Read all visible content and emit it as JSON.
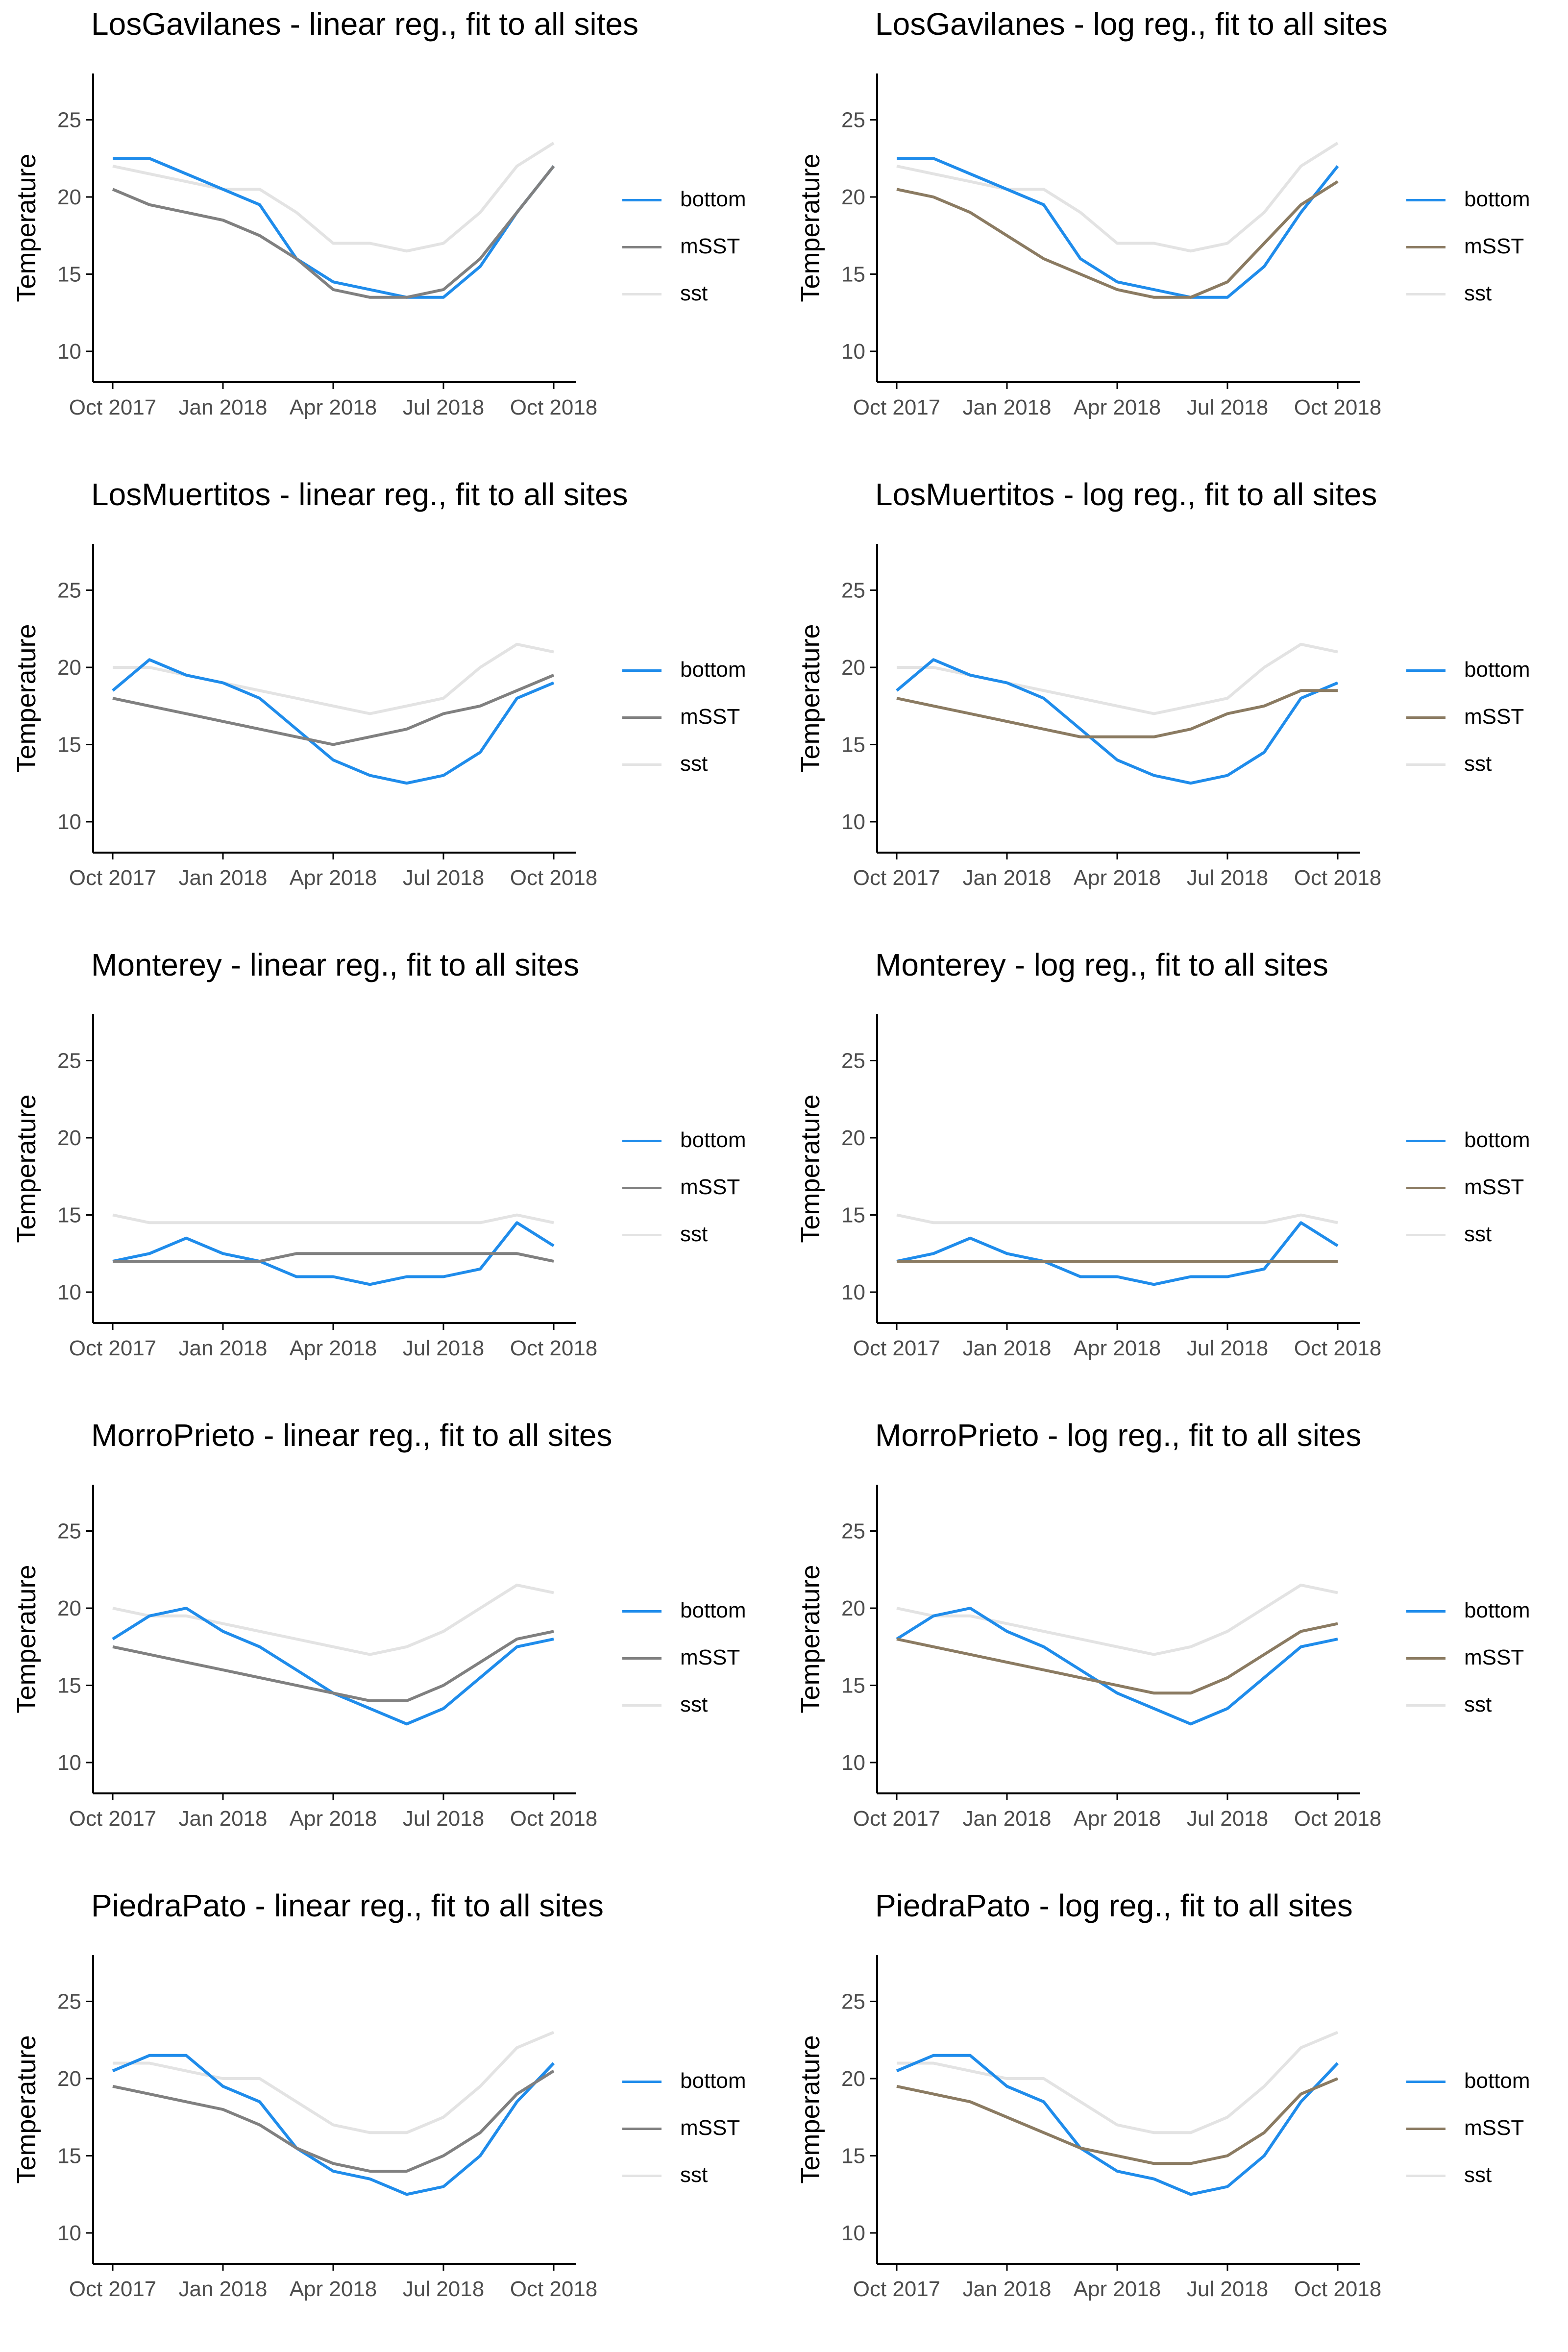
{
  "colors": {
    "bottom": "#1f8ceb",
    "mSST_linear": "#808080",
    "mSST_log": "#8b7b62",
    "sst": "#e3e3e3",
    "axis": "#000000",
    "tick_text": "#4d4d4d"
  },
  "legend": [
    "bottom",
    "mSST",
    "sst"
  ],
  "chart_data": [
    {
      "type": "line",
      "title": "LosGavilanes - linear reg., fit to all sites",
      "xlabel": "",
      "ylabel": "Temperature",
      "xticks": [
        "Oct 2017",
        "Jan 2018",
        "Apr 2018",
        "Jul 2018",
        "Oct 2018"
      ],
      "yticks": [
        10,
        15,
        20,
        25
      ],
      "ylim": [
        8,
        28
      ],
      "x": [
        "Oct 2017",
        "Nov 2017",
        "Dec 2017",
        "Jan 2018",
        "Feb 2018",
        "Mar 2018",
        "Apr 2018",
        "May 2018",
        "Jun 2018",
        "Jul 2018",
        "Aug 2018",
        "Sep 2018",
        "Oct 2018"
      ],
      "series": [
        {
          "name": "sst",
          "values": [
            22,
            21.5,
            21,
            20.5,
            20.5,
            19,
            17,
            17,
            16.5,
            17,
            19,
            22,
            23.5
          ]
        },
        {
          "name": "bottom",
          "values": [
            22.5,
            22.5,
            21.5,
            20.5,
            19.5,
            16,
            14.5,
            14,
            13.5,
            13.5,
            15.5,
            19,
            22
          ]
        },
        {
          "name": "mSST",
          "values": [
            20.5,
            19.5,
            19,
            18.5,
            17.5,
            16,
            14,
            13.5,
            13.5,
            14,
            16,
            19,
            22
          ]
        }
      ]
    },
    {
      "type": "line",
      "title": "LosGavilanes - log reg., fit to all sites",
      "xlabel": "",
      "ylabel": "Temperature",
      "xticks": [
        "Oct 2017",
        "Jan 2018",
        "Apr 2018",
        "Jul 2018",
        "Oct 2018"
      ],
      "yticks": [
        10,
        15,
        20,
        25
      ],
      "ylim": [
        8,
        28
      ],
      "x": [
        "Oct 2017",
        "Nov 2017",
        "Dec 2017",
        "Jan 2018",
        "Feb 2018",
        "Mar 2018",
        "Apr 2018",
        "May 2018",
        "Jun 2018",
        "Jul 2018",
        "Aug 2018",
        "Sep 2018",
        "Oct 2018"
      ],
      "series": [
        {
          "name": "sst",
          "values": [
            22,
            21.5,
            21,
            20.5,
            20.5,
            19,
            17,
            17,
            16.5,
            17,
            19,
            22,
            23.5
          ]
        },
        {
          "name": "bottom",
          "values": [
            22.5,
            22.5,
            21.5,
            20.5,
            19.5,
            16,
            14.5,
            14,
            13.5,
            13.5,
            15.5,
            19,
            22
          ]
        },
        {
          "name": "mSST",
          "values": [
            20.5,
            20,
            19,
            17.5,
            16,
            15,
            14,
            13.5,
            13.5,
            14.5,
            17,
            19.5,
            21
          ]
        }
      ]
    },
    {
      "type": "line",
      "title": "LosMuertitos - linear reg., fit to all sites",
      "xlabel": "",
      "ylabel": "Temperature",
      "xticks": [
        "Oct 2017",
        "Jan 2018",
        "Apr 2018",
        "Jul 2018",
        "Oct 2018"
      ],
      "yticks": [
        10,
        15,
        20,
        25
      ],
      "ylim": [
        8,
        28
      ],
      "x": [
        "Oct 2017",
        "Nov 2017",
        "Dec 2017",
        "Jan 2018",
        "Feb 2018",
        "Mar 2018",
        "Apr 2018",
        "May 2018",
        "Jun 2018",
        "Jul 2018",
        "Aug 2018",
        "Sep 2018",
        "Oct 2018"
      ],
      "series": [
        {
          "name": "sst",
          "values": [
            20,
            20,
            19.5,
            19,
            18.5,
            18,
            17.5,
            17,
            17.5,
            18,
            20,
            21.5,
            21
          ]
        },
        {
          "name": "bottom",
          "values": [
            18.5,
            20.5,
            19.5,
            19,
            18,
            16,
            14,
            13,
            12.5,
            13,
            14.5,
            18,
            19
          ]
        },
        {
          "name": "mSST",
          "values": [
            18,
            17.5,
            17,
            16.5,
            16,
            15.5,
            15,
            15.5,
            16,
            17,
            17.5,
            18.5,
            19.5
          ]
        }
      ]
    },
    {
      "type": "line",
      "title": "LosMuertitos - log reg., fit to all sites",
      "xlabel": "",
      "ylabel": "Temperature",
      "xticks": [
        "Oct 2017",
        "Jan 2018",
        "Apr 2018",
        "Jul 2018",
        "Oct 2018"
      ],
      "yticks": [
        10,
        15,
        20,
        25
      ],
      "ylim": [
        8,
        28
      ],
      "x": [
        "Oct 2017",
        "Nov 2017",
        "Dec 2017",
        "Jan 2018",
        "Feb 2018",
        "Mar 2018",
        "Apr 2018",
        "May 2018",
        "Jun 2018",
        "Jul 2018",
        "Aug 2018",
        "Sep 2018",
        "Oct 2018"
      ],
      "series": [
        {
          "name": "sst",
          "values": [
            20,
            20,
            19.5,
            19,
            18.5,
            18,
            17.5,
            17,
            17.5,
            18,
            20,
            21.5,
            21
          ]
        },
        {
          "name": "bottom",
          "values": [
            18.5,
            20.5,
            19.5,
            19,
            18,
            16,
            14,
            13,
            12.5,
            13,
            14.5,
            18,
            19
          ]
        },
        {
          "name": "mSST",
          "values": [
            18,
            17.5,
            17,
            16.5,
            16,
            15.5,
            15.5,
            15.5,
            16,
            17,
            17.5,
            18.5,
            18.5
          ]
        }
      ]
    },
    {
      "type": "line",
      "title": "Monterey - linear reg., fit to all sites",
      "xlabel": "",
      "ylabel": "Temperature",
      "xticks": [
        "Oct 2017",
        "Jan 2018",
        "Apr 2018",
        "Jul 2018",
        "Oct 2018"
      ],
      "yticks": [
        10,
        15,
        20,
        25
      ],
      "ylim": [
        8,
        28
      ],
      "x": [
        "Oct 2017",
        "Nov 2017",
        "Dec 2017",
        "Jan 2018",
        "Feb 2018",
        "Mar 2018",
        "Apr 2018",
        "May 2018",
        "Jun 2018",
        "Jul 2018",
        "Aug 2018",
        "Sep 2018",
        "Oct 2018"
      ],
      "series": [
        {
          "name": "sst",
          "values": [
            15,
            14.5,
            14.5,
            14.5,
            14.5,
            14.5,
            14.5,
            14.5,
            14.5,
            14.5,
            14.5,
            15,
            14.5
          ]
        },
        {
          "name": "bottom",
          "values": [
            12,
            12.5,
            13.5,
            12.5,
            12,
            11,
            11,
            10.5,
            11,
            11,
            11.5,
            14.5,
            13
          ]
        },
        {
          "name": "mSST",
          "values": [
            12,
            12,
            12,
            12,
            12,
            12.5,
            12.5,
            12.5,
            12.5,
            12.5,
            12.5,
            12.5,
            12
          ]
        }
      ]
    },
    {
      "type": "line",
      "title": "Monterey - log reg., fit to all sites",
      "xlabel": "",
      "ylabel": "Temperature",
      "xticks": [
        "Oct 2017",
        "Jan 2018",
        "Apr 2018",
        "Jul 2018",
        "Oct 2018"
      ],
      "yticks": [
        10,
        15,
        20,
        25
      ],
      "ylim": [
        8,
        28
      ],
      "x": [
        "Oct 2017",
        "Nov 2017",
        "Dec 2017",
        "Jan 2018",
        "Feb 2018",
        "Mar 2018",
        "Apr 2018",
        "May 2018",
        "Jun 2018",
        "Jul 2018",
        "Aug 2018",
        "Sep 2018",
        "Oct 2018"
      ],
      "series": [
        {
          "name": "sst",
          "values": [
            15,
            14.5,
            14.5,
            14.5,
            14.5,
            14.5,
            14.5,
            14.5,
            14.5,
            14.5,
            14.5,
            15,
            14.5
          ]
        },
        {
          "name": "bottom",
          "values": [
            12,
            12.5,
            13.5,
            12.5,
            12,
            11,
            11,
            10.5,
            11,
            11,
            11.5,
            14.5,
            13
          ]
        },
        {
          "name": "mSST",
          "values": [
            12,
            12,
            12,
            12,
            12,
            12,
            12,
            12,
            12,
            12,
            12,
            12,
            12
          ]
        }
      ]
    },
    {
      "type": "line",
      "title": "MorroPrieto - linear reg., fit to all sites",
      "xlabel": "",
      "ylabel": "Temperature",
      "xticks": [
        "Oct 2017",
        "Jan 2018",
        "Apr 2018",
        "Jul 2018",
        "Oct 2018"
      ],
      "yticks": [
        10,
        15,
        20,
        25
      ],
      "ylim": [
        8,
        28
      ],
      "x": [
        "Oct 2017",
        "Nov 2017",
        "Dec 2017",
        "Jan 2018",
        "Feb 2018",
        "Mar 2018",
        "Apr 2018",
        "May 2018",
        "Jun 2018",
        "Jul 2018",
        "Aug 2018",
        "Sep 2018",
        "Oct 2018"
      ],
      "series": [
        {
          "name": "sst",
          "values": [
            20,
            19.5,
            19.5,
            19,
            18.5,
            18,
            17.5,
            17,
            17.5,
            18.5,
            20,
            21.5,
            21
          ]
        },
        {
          "name": "bottom",
          "values": [
            18,
            19.5,
            20,
            18.5,
            17.5,
            16,
            14.5,
            13.5,
            12.5,
            13.5,
            15.5,
            17.5,
            18
          ]
        },
        {
          "name": "mSST",
          "values": [
            17.5,
            17,
            16.5,
            16,
            15.5,
            15,
            14.5,
            14,
            14,
            15,
            16.5,
            18,
            18.5
          ]
        }
      ]
    },
    {
      "type": "line",
      "title": "MorroPrieto - log reg., fit to all sites",
      "xlabel": "",
      "ylabel": "Temperature",
      "xticks": [
        "Oct 2017",
        "Jan 2018",
        "Apr 2018",
        "Jul 2018",
        "Oct 2018"
      ],
      "yticks": [
        10,
        15,
        20,
        25
      ],
      "ylim": [
        8,
        28
      ],
      "x": [
        "Oct 2017",
        "Nov 2017",
        "Dec 2017",
        "Jan 2018",
        "Feb 2018",
        "Mar 2018",
        "Apr 2018",
        "May 2018",
        "Jun 2018",
        "Jul 2018",
        "Aug 2018",
        "Sep 2018",
        "Oct 2018"
      ],
      "series": [
        {
          "name": "sst",
          "values": [
            20,
            19.5,
            19.5,
            19,
            18.5,
            18,
            17.5,
            17,
            17.5,
            18.5,
            20,
            21.5,
            21
          ]
        },
        {
          "name": "bottom",
          "values": [
            18,
            19.5,
            20,
            18.5,
            17.5,
            16,
            14.5,
            13.5,
            12.5,
            13.5,
            15.5,
            17.5,
            18
          ]
        },
        {
          "name": "mSST",
          "values": [
            18,
            17.5,
            17,
            16.5,
            16,
            15.5,
            15,
            14.5,
            14.5,
            15.5,
            17,
            18.5,
            19
          ]
        }
      ]
    },
    {
      "type": "line",
      "title": "PiedraPato - linear reg., fit to all sites",
      "xlabel": "",
      "ylabel": "Temperature",
      "xticks": [
        "Oct 2017",
        "Jan 2018",
        "Apr 2018",
        "Jul 2018",
        "Oct 2018"
      ],
      "yticks": [
        10,
        15,
        20,
        25
      ],
      "ylim": [
        8,
        28
      ],
      "x": [
        "Oct 2017",
        "Nov 2017",
        "Dec 2017",
        "Jan 2018",
        "Feb 2018",
        "Mar 2018",
        "Apr 2018",
        "May 2018",
        "Jun 2018",
        "Jul 2018",
        "Aug 2018",
        "Sep 2018",
        "Oct 2018"
      ],
      "series": [
        {
          "name": "sst",
          "values": [
            21,
            21,
            20.5,
            20,
            20,
            18.5,
            17,
            16.5,
            16.5,
            17.5,
            19.5,
            22,
            23
          ]
        },
        {
          "name": "bottom",
          "values": [
            20.5,
            21.5,
            21.5,
            19.5,
            18.5,
            15.5,
            14,
            13.5,
            12.5,
            13,
            15,
            18.5,
            21
          ]
        },
        {
          "name": "mSST",
          "values": [
            19.5,
            19,
            18.5,
            18,
            17,
            15.5,
            14.5,
            14,
            14,
            15,
            16.5,
            19,
            20.5
          ]
        }
      ]
    },
    {
      "type": "line",
      "title": "PiedraPato - log reg., fit to all sites",
      "xlabel": "",
      "ylabel": "Temperature",
      "xticks": [
        "Oct 2017",
        "Jan 2018",
        "Apr 2018",
        "Jul 2018",
        "Oct 2018"
      ],
      "yticks": [
        10,
        15,
        20,
        25
      ],
      "ylim": [
        8,
        28
      ],
      "x": [
        "Oct 2017",
        "Nov 2017",
        "Dec 2017",
        "Jan 2018",
        "Feb 2018",
        "Mar 2018",
        "Apr 2018",
        "May 2018",
        "Jun 2018",
        "Jul 2018",
        "Aug 2018",
        "Sep 2018",
        "Oct 2018"
      ],
      "series": [
        {
          "name": "sst",
          "values": [
            21,
            21,
            20.5,
            20,
            20,
            18.5,
            17,
            16.5,
            16.5,
            17.5,
            19.5,
            22,
            23
          ]
        },
        {
          "name": "bottom",
          "values": [
            20.5,
            21.5,
            21.5,
            19.5,
            18.5,
            15.5,
            14,
            13.5,
            12.5,
            13,
            15,
            18.5,
            21
          ]
        },
        {
          "name": "mSST",
          "values": [
            19.5,
            19,
            18.5,
            17.5,
            16.5,
            15.5,
            15,
            14.5,
            14.5,
            15,
            16.5,
            19,
            20
          ]
        }
      ]
    }
  ]
}
